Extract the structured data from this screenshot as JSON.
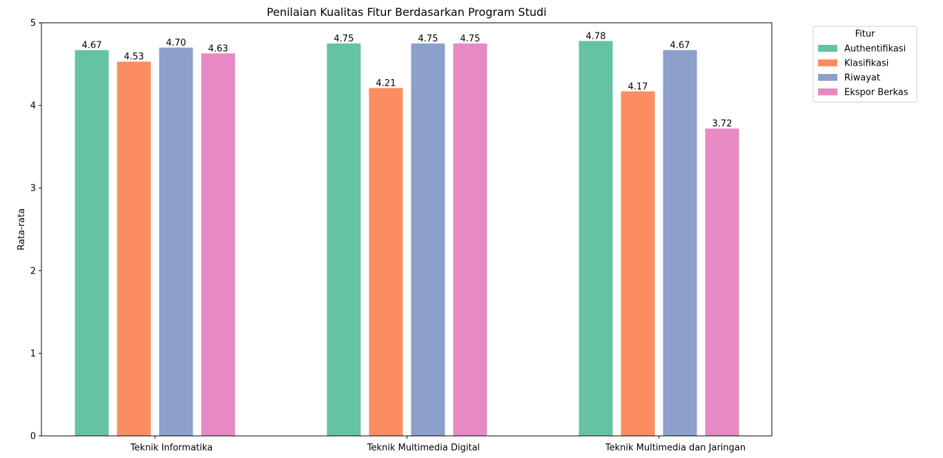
{
  "chart_data": {
    "type": "bar",
    "title": "Penilaian Kualitas Fitur Berdasarkan Program Studi",
    "xlabel": "",
    "ylabel": "Rata-rata",
    "ylim": [
      0,
      5
    ],
    "yticks": [
      0,
      1,
      2,
      3,
      4,
      5
    ],
    "grid": false,
    "legend_title": "Fitur",
    "legend_placement": "outside-top-right",
    "categories": [
      "Teknik Informatika",
      "Teknik Multimedia Digital",
      "Teknik Multimedia dan Jaringan"
    ],
    "series": [
      {
        "name": "Authentifikasi",
        "color": "#66c2a5",
        "values": [
          4.67,
          4.75,
          4.78
        ],
        "labels": [
          "4.67",
          "4.75",
          "4.78"
        ]
      },
      {
        "name": "Klasifikasi",
        "color": "#fc8d62",
        "values": [
          4.53,
          4.21,
          4.17
        ],
        "labels": [
          "4.53",
          "4.21",
          "4.17"
        ]
      },
      {
        "name": "Riwayat",
        "color": "#8da0cb",
        "values": [
          4.7,
          4.75,
          4.67
        ],
        "labels": [
          "4.70",
          "4.75",
          "4.67"
        ]
      },
      {
        "name": "Ekspor Berkas",
        "color": "#e78ac3",
        "values": [
          4.63,
          4.75,
          3.72
        ],
        "labels": [
          "4.63",
          "4.75",
          "3.72"
        ]
      }
    ]
  }
}
